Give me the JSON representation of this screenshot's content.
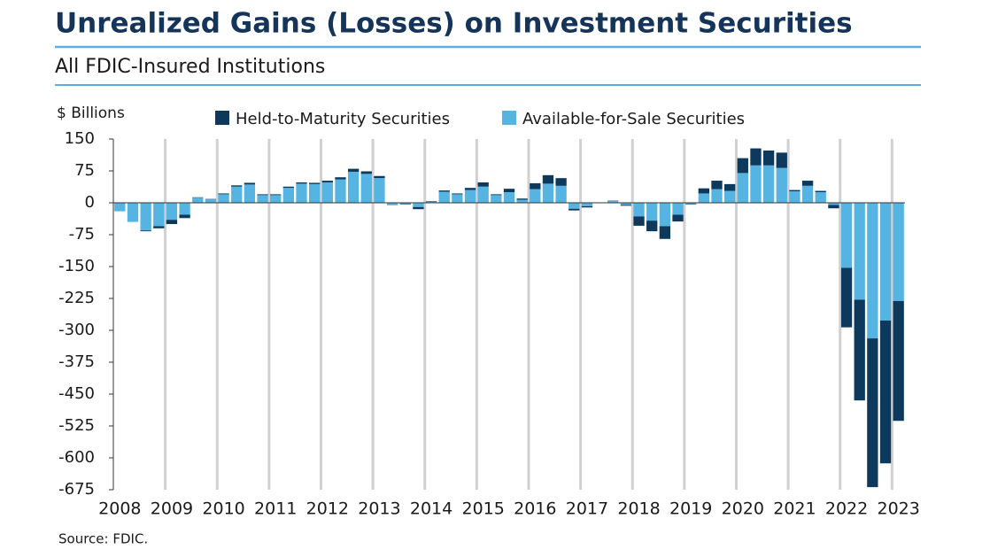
{
  "chart_data": {
    "type": "stacked-bar",
    "title": "Unrealized Gains (Losses) on Investment Securities",
    "subtitle": "All FDIC-Insured Institutions",
    "y_label": "$ Billions",
    "source": "Source: FDIC.",
    "categories": [
      "2008",
      null,
      null,
      null,
      "2009",
      null,
      null,
      null,
      "2010",
      null,
      null,
      null,
      "2011",
      null,
      null,
      null,
      "2012",
      null,
      null,
      null,
      "2013",
      null,
      null,
      null,
      "2014",
      null,
      null,
      null,
      "2015",
      null,
      null,
      null,
      "2016",
      null,
      null,
      null,
      "2017",
      null,
      null,
      null,
      "2018",
      null,
      null,
      null,
      "2019",
      null,
      null,
      null,
      "2020",
      null,
      null,
      null,
      "2021",
      null,
      null,
      null,
      "2022",
      null,
      null,
      null,
      "2023"
    ],
    "series": [
      {
        "name": "Held-to-Maturity Securities",
        "color": "#0d3a5c",
        "values": [
          0,
          0,
          -2,
          -5,
          -10,
          -8,
          1,
          1,
          2,
          3,
          4,
          2,
          2,
          3,
          3,
          3,
          4,
          5,
          7,
          6,
          5,
          -1,
          -1,
          -5,
          1,
          3,
          2,
          5,
          10,
          2,
          8,
          3,
          14,
          20,
          18,
          -4,
          -3,
          0,
          1,
          -2,
          -22,
          -25,
          -30,
          -16,
          -1,
          12,
          20,
          16,
          35,
          40,
          35,
          36,
          3,
          12,
          3,
          -8,
          -140,
          -237,
          -350,
          -336,
          -282
        ]
      },
      {
        "name": "Available-for-Sale Securities",
        "color": "#56b4e3",
        "values": [
          -20,
          -45,
          -65,
          -55,
          -40,
          -28,
          12,
          8,
          20,
          38,
          43,
          18,
          18,
          35,
          45,
          44,
          48,
          55,
          73,
          68,
          58,
          -4,
          -3,
          -10,
          3,
          26,
          20,
          30,
          38,
          18,
          25,
          7,
          32,
          45,
          40,
          -14,
          -8,
          1,
          4,
          -5,
          -32,
          -42,
          -55,
          -28,
          -3,
          22,
          32,
          28,
          70,
          88,
          88,
          82,
          27,
          40,
          25,
          -5,
          -153,
          -228,
          -319,
          -277,
          -231
        ]
      }
    ],
    "ylim": [
      -675,
      150
    ],
    "yticks": [
      150,
      75,
      0,
      -75,
      -150,
      -225,
      -300,
      -375,
      -450,
      -525,
      -600,
      -675
    ],
    "legend": "top"
  }
}
